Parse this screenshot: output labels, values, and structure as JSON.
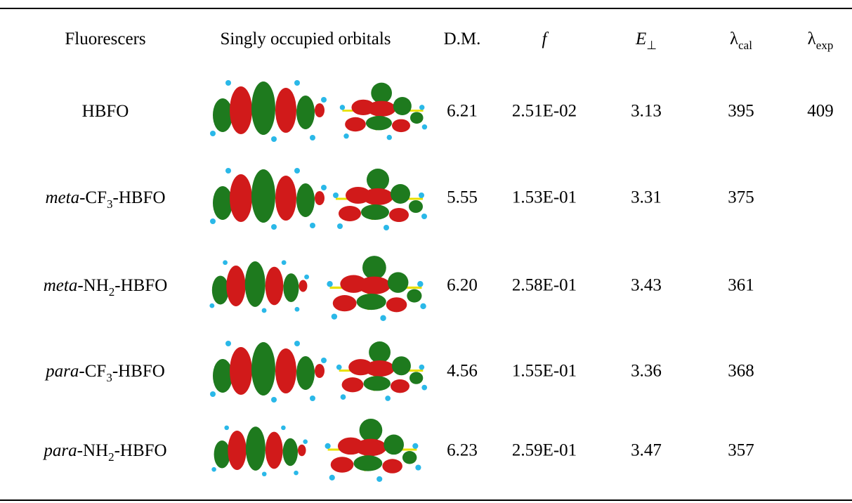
{
  "table": {
    "header": [
      [
        {
          "text": "Fluorescers"
        }
      ],
      [
        {
          "text": "Singly occupied orbitals"
        }
      ],
      [
        {
          "text": "D.M."
        }
      ],
      [
        {
          "text": "f",
          "style": "italic"
        }
      ],
      [
        {
          "text": "E",
          "style": "italic"
        },
        {
          "text": "⊥",
          "style": "sub"
        }
      ],
      [
        {
          "text": "λ"
        },
        {
          "text": "cal",
          "style": "sub"
        }
      ],
      [
        {
          "text": "λ"
        },
        {
          "text": "exp",
          "style": "sub"
        }
      ]
    ],
    "rows": [
      [
        [
          {
            "text": "HBFO"
          }
        ],
        "6.21",
        "2.51E-02",
        "3.13",
        "395",
        "409"
      ],
      [
        [
          {
            "text": "meta",
            "style": "italic"
          },
          {
            "text": "-CF"
          },
          {
            "text": "3",
            "style": "sub"
          },
          {
            "text": "-HBFO"
          }
        ],
        "5.55",
        "1.53E-01",
        "3.31",
        "375",
        null
      ],
      [
        [
          {
            "text": "meta",
            "style": "italic"
          },
          {
            "text": "-NH"
          },
          {
            "text": "2",
            "style": "sub"
          },
          {
            "text": "-HBFO"
          }
        ],
        "6.20",
        "2.58E-01",
        "3.43",
        "361",
        null
      ],
      [
        [
          {
            "text": "para",
            "style": "italic"
          },
          {
            "text": "-CF"
          },
          {
            "text": "3",
            "style": "sub"
          },
          {
            "text": "-HBFO"
          }
        ],
        "4.56",
        "1.55E-01",
        "3.36",
        "368",
        null
      ],
      [
        [
          {
            "text": "para",
            "style": "italic"
          },
          {
            "text": "-NH"
          },
          {
            "text": "2",
            "style": "sub"
          },
          {
            "text": "-HBFO"
          }
        ],
        "6.23",
        "2.59E-01",
        "3.47",
        "357",
        null
      ]
    ]
  }
}
